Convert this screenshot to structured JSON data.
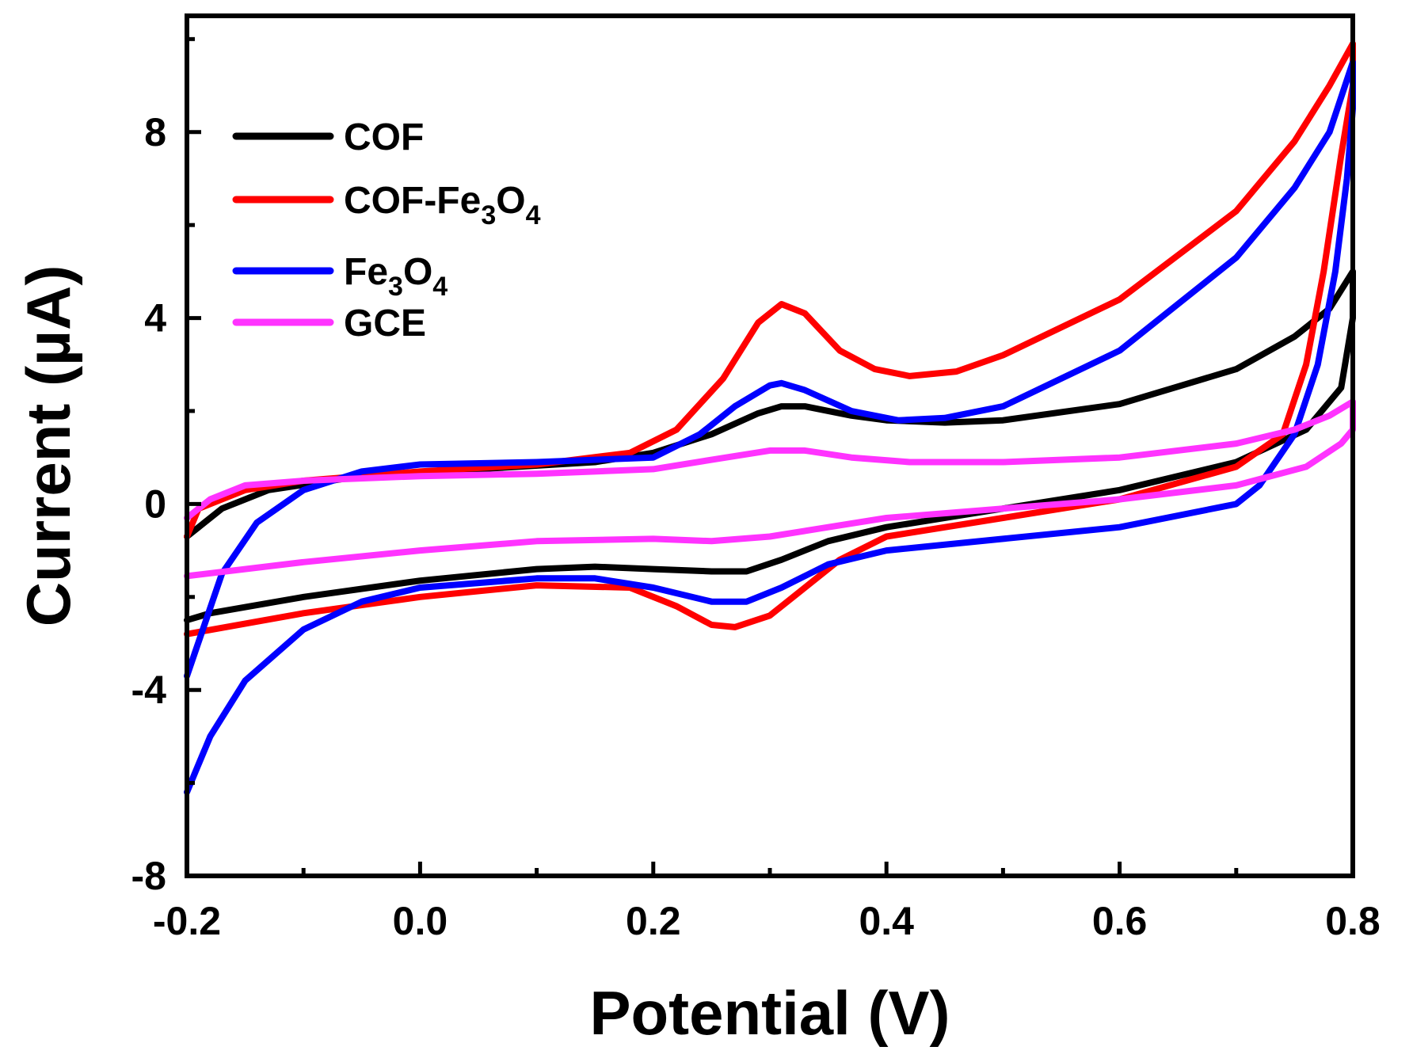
{
  "chart_data": {
    "type": "line",
    "title": "",
    "xlabel": "Potential (V)",
    "ylabel": "Current (µA)",
    "xlim": [
      -0.2,
      0.8
    ],
    "ylim": [
      -8,
      10.5
    ],
    "xticks": [
      -0.2,
      0.0,
      0.2,
      0.4,
      0.6,
      0.8
    ],
    "xtick_labels": [
      "-0.2",
      "0.0",
      "0.2",
      "0.4",
      "0.6",
      "0.8"
    ],
    "yticks": [
      -8,
      -4,
      0,
      4,
      8
    ],
    "ytick_labels": [
      "-8",
      "-4",
      "0",
      "4",
      "8"
    ],
    "legend_position": "top-left",
    "grid": false,
    "series": [
      {
        "name": "COF",
        "legend_main": "COF",
        "legend_sub1": "",
        "legend_mid": "",
        "legend_sub2": "",
        "color": "#000000",
        "points": [
          [
            -0.2,
            -0.7
          ],
          [
            -0.17,
            -0.1
          ],
          [
            -0.13,
            0.3
          ],
          [
            -0.05,
            0.6
          ],
          [
            0.05,
            0.75
          ],
          [
            0.15,
            0.9
          ],
          [
            0.2,
            1.1
          ],
          [
            0.25,
            1.5
          ],
          [
            0.29,
            1.95
          ],
          [
            0.31,
            2.1
          ],
          [
            0.33,
            2.1
          ],
          [
            0.37,
            1.9
          ],
          [
            0.4,
            1.8
          ],
          [
            0.45,
            1.75
          ],
          [
            0.5,
            1.8
          ],
          [
            0.6,
            2.15
          ],
          [
            0.7,
            2.9
          ],
          [
            0.75,
            3.6
          ],
          [
            0.78,
            4.2
          ],
          [
            0.8,
            5.0
          ],
          [
            0.8,
            4.0
          ],
          [
            0.79,
            2.5
          ],
          [
            0.76,
            1.6
          ],
          [
            0.7,
            0.9
          ],
          [
            0.6,
            0.3
          ],
          [
            0.5,
            -0.1
          ],
          [
            0.4,
            -0.5
          ],
          [
            0.35,
            -0.8
          ],
          [
            0.31,
            -1.2
          ],
          [
            0.28,
            -1.45
          ],
          [
            0.25,
            -1.45
          ],
          [
            0.2,
            -1.4
          ],
          [
            0.15,
            -1.35
          ],
          [
            0.1,
            -1.4
          ],
          [
            0.0,
            -1.65
          ],
          [
            -0.1,
            -2.0
          ],
          [
            -0.18,
            -2.35
          ],
          [
            -0.2,
            -2.5
          ]
        ]
      },
      {
        "name": "COF-Fe3O4",
        "legend_main": "COF-Fe",
        "legend_sub1": "3",
        "legend_mid": "O",
        "legend_sub2": "4",
        "color": "#ff0000",
        "points": [
          [
            -0.2,
            -0.7
          ],
          [
            -0.19,
            -0.1
          ],
          [
            -0.15,
            0.3
          ],
          [
            -0.1,
            0.5
          ],
          [
            0.0,
            0.7
          ],
          [
            0.1,
            0.85
          ],
          [
            0.18,
            1.1
          ],
          [
            0.22,
            1.6
          ],
          [
            0.26,
            2.7
          ],
          [
            0.29,
            3.9
          ],
          [
            0.31,
            4.3
          ],
          [
            0.33,
            4.1
          ],
          [
            0.36,
            3.3
          ],
          [
            0.39,
            2.9
          ],
          [
            0.42,
            2.75
          ],
          [
            0.46,
            2.85
          ],
          [
            0.5,
            3.2
          ],
          [
            0.6,
            4.4
          ],
          [
            0.7,
            6.3
          ],
          [
            0.75,
            7.8
          ],
          [
            0.78,
            9.0
          ],
          [
            0.8,
            9.9
          ],
          [
            0.8,
            9.0
          ],
          [
            0.79,
            7.5
          ],
          [
            0.775,
            5.0
          ],
          [
            0.76,
            3.0
          ],
          [
            0.74,
            1.5
          ],
          [
            0.7,
            0.8
          ],
          [
            0.6,
            0.1
          ],
          [
            0.5,
            -0.3
          ],
          [
            0.4,
            -0.7
          ],
          [
            0.36,
            -1.2
          ],
          [
            0.33,
            -1.8
          ],
          [
            0.3,
            -2.4
          ],
          [
            0.27,
            -2.65
          ],
          [
            0.25,
            -2.6
          ],
          [
            0.22,
            -2.2
          ],
          [
            0.18,
            -1.8
          ],
          [
            0.1,
            -1.75
          ],
          [
            0.0,
            -2.0
          ],
          [
            -0.1,
            -2.35
          ],
          [
            -0.2,
            -2.8
          ]
        ]
      },
      {
        "name": "Fe3O4",
        "legend_main": "Fe",
        "legend_sub1": "3",
        "legend_mid": "O",
        "legend_sub2": "4",
        "color": "#0000ff",
        "points": [
          [
            -0.2,
            -3.7
          ],
          [
            -0.17,
            -1.5
          ],
          [
            -0.14,
            -0.4
          ],
          [
            -0.1,
            0.3
          ],
          [
            -0.05,
            0.7
          ],
          [
            0.0,
            0.85
          ],
          [
            0.1,
            0.9
          ],
          [
            0.2,
            1.0
          ],
          [
            0.24,
            1.5
          ],
          [
            0.27,
            2.1
          ],
          [
            0.3,
            2.55
          ],
          [
            0.31,
            2.6
          ],
          [
            0.33,
            2.45
          ],
          [
            0.37,
            2.0
          ],
          [
            0.41,
            1.8
          ],
          [
            0.45,
            1.85
          ],
          [
            0.5,
            2.1
          ],
          [
            0.6,
            3.3
          ],
          [
            0.7,
            5.3
          ],
          [
            0.75,
            6.8
          ],
          [
            0.78,
            8.0
          ],
          [
            0.8,
            9.5
          ],
          [
            0.8,
            8.5
          ],
          [
            0.795,
            7.0
          ],
          [
            0.785,
            5.0
          ],
          [
            0.77,
            3.0
          ],
          [
            0.75,
            1.5
          ],
          [
            0.72,
            0.4
          ],
          [
            0.7,
            0.0
          ],
          [
            0.6,
            -0.5
          ],
          [
            0.5,
            -0.75
          ],
          [
            0.4,
            -1.0
          ],
          [
            0.35,
            -1.3
          ],
          [
            0.31,
            -1.8
          ],
          [
            0.28,
            -2.1
          ],
          [
            0.25,
            -2.1
          ],
          [
            0.2,
            -1.8
          ],
          [
            0.15,
            -1.6
          ],
          [
            0.1,
            -1.6
          ],
          [
            0.0,
            -1.8
          ],
          [
            -0.05,
            -2.1
          ],
          [
            -0.1,
            -2.7
          ],
          [
            -0.15,
            -3.8
          ],
          [
            -0.18,
            -5.0
          ],
          [
            -0.2,
            -6.2
          ]
        ]
      },
      {
        "name": "GCE",
        "legend_main": "GCE",
        "legend_sub1": "",
        "legend_mid": "",
        "legend_sub2": "",
        "color": "#ff33ff",
        "points": [
          [
            -0.2,
            -0.3
          ],
          [
            -0.18,
            0.1
          ],
          [
            -0.15,
            0.4
          ],
          [
            -0.1,
            0.5
          ],
          [
            0.0,
            0.6
          ],
          [
            0.1,
            0.65
          ],
          [
            0.2,
            0.75
          ],
          [
            0.25,
            0.95
          ],
          [
            0.3,
            1.15
          ],
          [
            0.33,
            1.15
          ],
          [
            0.37,
            1.0
          ],
          [
            0.42,
            0.9
          ],
          [
            0.5,
            0.9
          ],
          [
            0.6,
            1.0
          ],
          [
            0.7,
            1.3
          ],
          [
            0.75,
            1.6
          ],
          [
            0.78,
            1.9
          ],
          [
            0.8,
            2.2
          ],
          [
            0.8,
            1.6
          ],
          [
            0.79,
            1.3
          ],
          [
            0.76,
            0.8
          ],
          [
            0.7,
            0.4
          ],
          [
            0.6,
            0.1
          ],
          [
            0.5,
            -0.1
          ],
          [
            0.4,
            -0.3
          ],
          [
            0.35,
            -0.5
          ],
          [
            0.3,
            -0.7
          ],
          [
            0.25,
            -0.8
          ],
          [
            0.2,
            -0.75
          ],
          [
            0.1,
            -0.8
          ],
          [
            0.0,
            -1.0
          ],
          [
            -0.1,
            -1.25
          ],
          [
            -0.2,
            -1.55
          ]
        ]
      }
    ]
  }
}
